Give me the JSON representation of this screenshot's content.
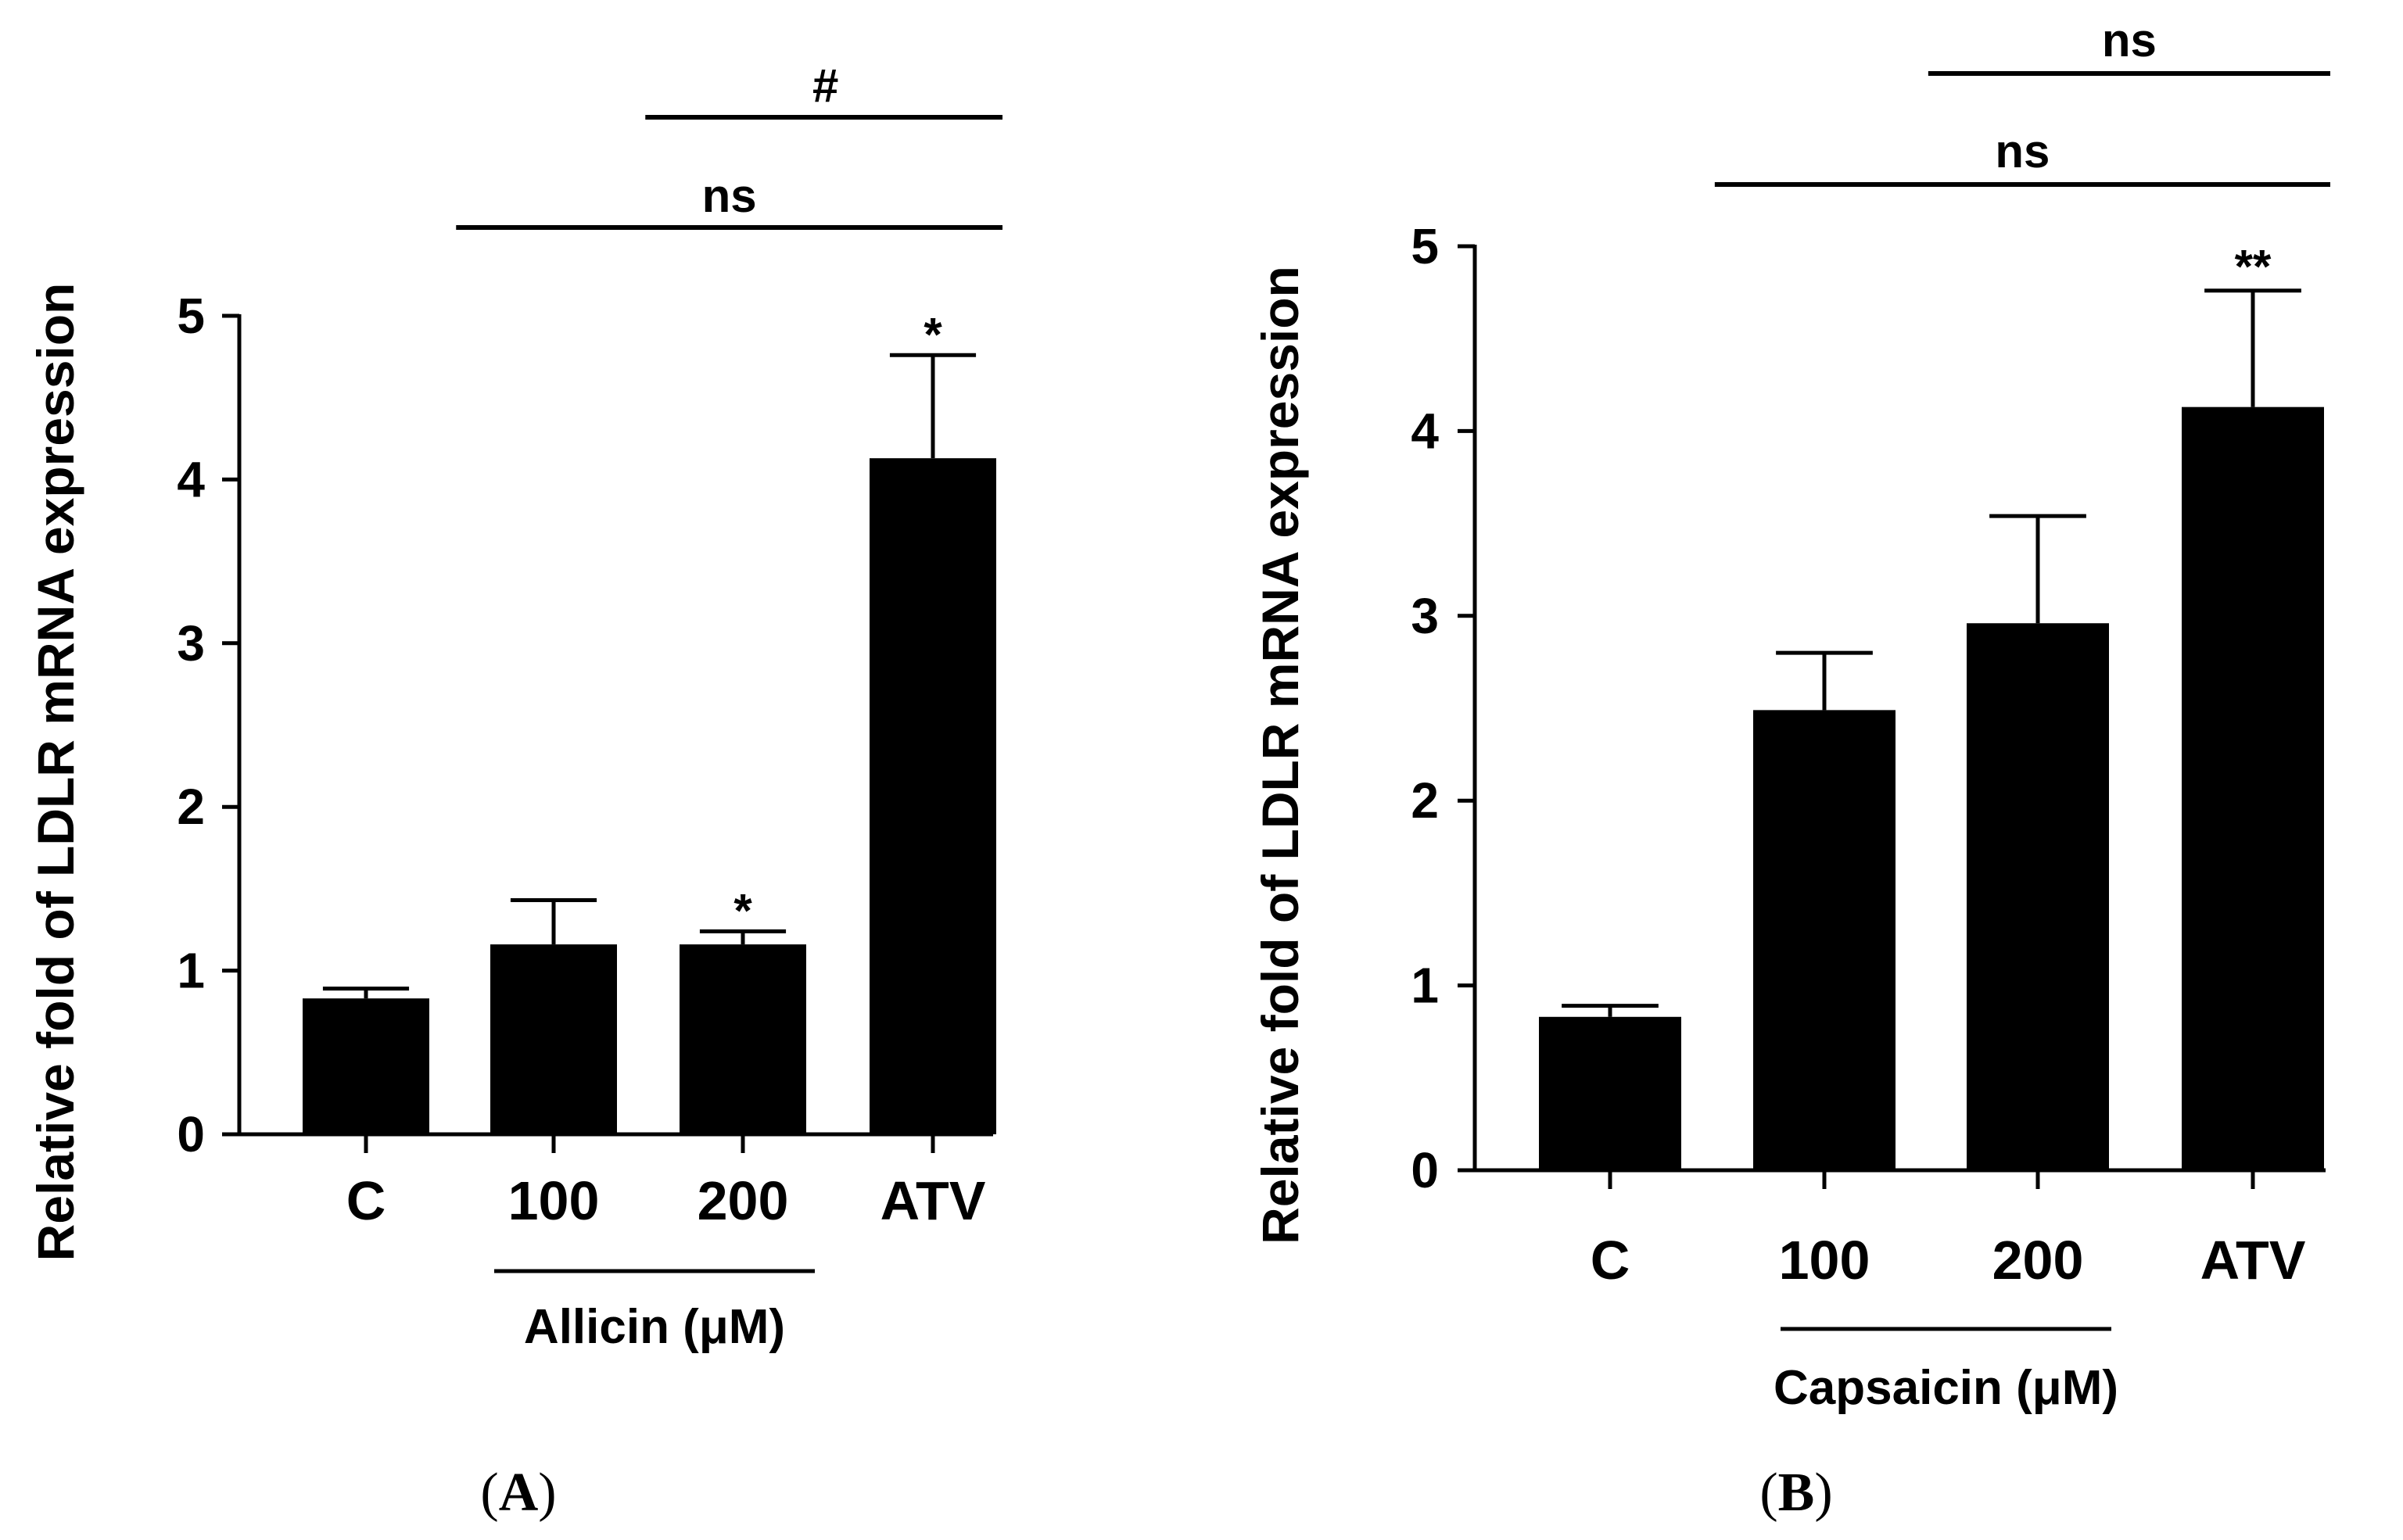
{
  "colors": {
    "bar": "#000000",
    "axis": "#000000",
    "background": "#ffffff"
  },
  "chart_data": [
    {
      "type": "bar",
      "panel": "(A)",
      "panel_open": "(",
      "panel_letter": "A",
      "panel_close": ")",
      "ylabel": "Relative fold of LDLR mRNA expression",
      "xlabel": "",
      "ylim": [
        0,
        5
      ],
      "yticks": [
        0,
        1,
        2,
        3,
        4,
        5
      ],
      "categories": [
        "C",
        "100",
        "200",
        "ATV"
      ],
      "values": [
        0.83,
        1.16,
        1.16,
        4.13
      ],
      "errors": [
        0.06,
        0.27,
        0.08,
        0.63
      ],
      "point_annotations": [
        "",
        "",
        "*",
        "*"
      ],
      "group": {
        "label": "Allicin (μM)",
        "categories": [
          "100",
          "200"
        ]
      },
      "comparisons": [
        {
          "label": "ns",
          "from": "100",
          "to": "ATV"
        },
        {
          "label": "#",
          "from": "200",
          "to": "ATV"
        }
      ]
    },
    {
      "type": "bar",
      "panel": "(B)",
      "panel_open": "(",
      "panel_letter": "B",
      "panel_close": ")",
      "ylabel": "Relative fold of LDLR mRNA expression",
      "xlabel": "",
      "ylim": [
        0,
        5
      ],
      "yticks": [
        0,
        1,
        2,
        3,
        4,
        5
      ],
      "categories": [
        "C",
        "100",
        "200",
        "ATV"
      ],
      "values": [
        0.83,
        2.49,
        2.96,
        4.13
      ],
      "errors": [
        0.06,
        0.31,
        0.58,
        0.63
      ],
      "point_annotations": [
        "",
        "",
        "",
        "**"
      ],
      "group": {
        "label": "Capsaicin (μM)",
        "categories": [
          "100",
          "200"
        ]
      },
      "comparisons": [
        {
          "label": "ns",
          "from": "100",
          "to": "ATV"
        },
        {
          "label": "ns",
          "from": "200",
          "to": "ATV"
        }
      ]
    }
  ]
}
